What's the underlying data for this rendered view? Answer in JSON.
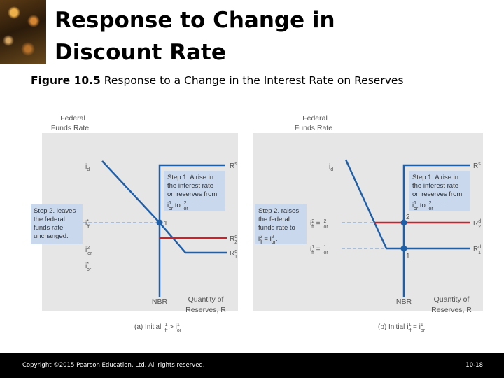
{
  "slide": {
    "title_line1": "Response to Change in",
    "title_line2": "Discount Rate",
    "figure_label": "Figure 10.5",
    "figure_caption": "Response to a Change in the Interest Rate on Reserves",
    "copyright": "Copyright ©2015 Pearson Education, Ltd. All rights reserved.",
    "page_number": "10-18"
  },
  "colors": {
    "supply": "#1f5fa8",
    "demand_new": "#c0262c",
    "box": "#c9d8ec",
    "dashed": "#6f93c7"
  },
  "panel_a": {
    "y_axis_line1": "Federal",
    "y_axis_line2": "Funds Rate",
    "x_axis_line1": "Quantity of",
    "x_axis_line2": "Reserves, R",
    "nbr": "NBR",
    "supply_label": "R",
    "supply_sup": "s",
    "demand1_label": "R",
    "demand1_sub": "1",
    "demand1_sup": "d",
    "demand2_label": "R",
    "demand2_sub": "2",
    "demand2_sup": "d",
    "id": "i",
    "id_sub": "d",
    "iff": "i",
    "iff_sub": "ff",
    "iff_sup": "*",
    "ior2": "i",
    "ior2_sub": "or",
    "ior2_sup": "2",
    "ior1": "i",
    "ior1_sub": "or",
    "ior1_sup": "*",
    "point1": "1",
    "step1_lines": [
      "Step 1. A rise in",
      "the interest rate",
      "on reserves from"
    ],
    "step1_formula": [
      "i",
      "1",
      "or",
      " to ",
      "i",
      "2",
      "or",
      ". . ."
    ],
    "step2_lines": [
      "Step 2. leaves",
      "the federal",
      "funds rate",
      "unchanged."
    ],
    "caption_prefix": "(a) Initial",
    "caption_formula": [
      "i",
      "1",
      "ff",
      " > ",
      "i",
      "1",
      "or"
    ]
  },
  "panel_b": {
    "y_axis_line1": "Federal",
    "y_axis_line2": "Funds Rate",
    "x_axis_line1": "Quantity of",
    "x_axis_line2": "Reserves, R",
    "nbr": "NBR",
    "supply_label": "R",
    "supply_sup": "s",
    "demand1_label": "R",
    "demand1_sub": "1",
    "demand1_sup": "d",
    "demand2_label": "R",
    "demand2_sub": "2",
    "demand2_sup": "d",
    "id": "i",
    "id_sub": "d",
    "upper_formula": [
      "i",
      "2",
      "ff",
      " = ",
      "i",
      "2",
      "or"
    ],
    "lower_formula": [
      "i",
      "1",
      "ff",
      " = ",
      "i",
      "1",
      "or"
    ],
    "point1": "1",
    "point2": "2",
    "step1_lines": [
      "Step 1. A rise in",
      "the interest rate",
      "on reserves from"
    ],
    "step1_formula": [
      "i",
      "1",
      "or",
      " to ",
      "i",
      "2",
      "or",
      ". . ."
    ],
    "step2_lines": [
      "Step 2. raises",
      "the federal",
      "funds rate to"
    ],
    "step2_formula": [
      "i",
      "2",
      "ff",
      " = ",
      "i",
      "2",
      "or",
      "."
    ],
    "caption_prefix": "(b) Initial",
    "caption_formula": [
      "i",
      "1",
      "ff",
      " = ",
      "i",
      "1",
      "or"
    ]
  }
}
